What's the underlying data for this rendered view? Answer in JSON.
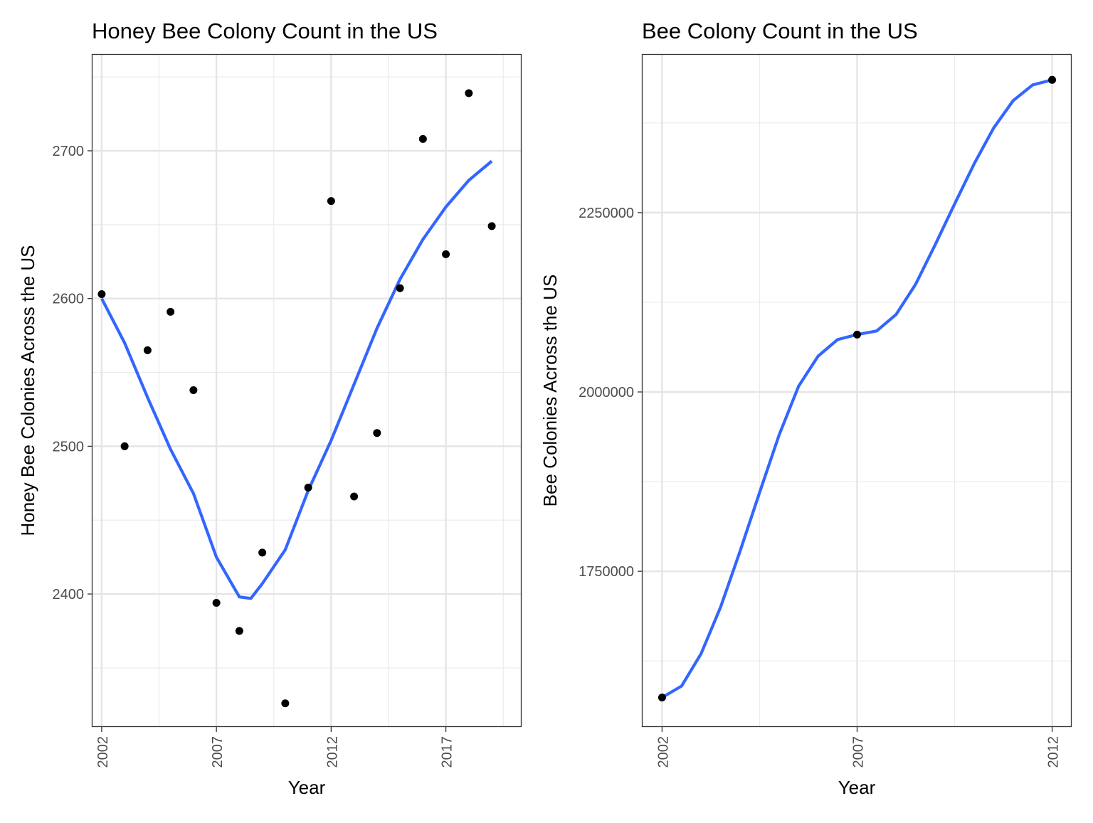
{
  "chart_data": [
    {
      "type": "scatter",
      "title": "Honey Bee Colony Count in the US",
      "xlabel": "Year",
      "ylabel": "Honey Bee Colonies Across the US",
      "x_ticks": [
        2002,
        2007,
        2012,
        2017
      ],
      "y_ticks": [
        2400,
        2500,
        2600,
        2700
      ],
      "xlim": [
        2001.6,
        2020.3
      ],
      "ylim": [
        2310,
        2765
      ],
      "grid": true,
      "points": [
        {
          "x": 2002,
          "y": 2603
        },
        {
          "x": 2003,
          "y": 2500
        },
        {
          "x": 2004,
          "y": 2565
        },
        {
          "x": 2005,
          "y": 2591
        },
        {
          "x": 2006,
          "y": 2538
        },
        {
          "x": 2007,
          "y": 2394
        },
        {
          "x": 2008,
          "y": 2375
        },
        {
          "x": 2009,
          "y": 2428
        },
        {
          "x": 2010,
          "y": 2326
        },
        {
          "x": 2011,
          "y": 2472
        },
        {
          "x": 2012,
          "y": 2666
        },
        {
          "x": 2013,
          "y": 2466
        },
        {
          "x": 2014,
          "y": 2509
        },
        {
          "x": 2015,
          "y": 2607
        },
        {
          "x": 2016,
          "y": 2708
        },
        {
          "x": 2017,
          "y": 2630
        },
        {
          "x": 2018,
          "y": 2739
        },
        {
          "x": 2019,
          "y": 2649
        }
      ],
      "smooth": {
        "color": "#3366FF",
        "x": [
          2002,
          2003,
          2004,
          2005,
          2006,
          2007,
          2008,
          2008.5,
          2009,
          2010,
          2011,
          2012,
          2013,
          2014,
          2015,
          2016,
          2017,
          2018,
          2019
        ],
        "y": [
          2600,
          2570,
          2533,
          2498,
          2468,
          2425,
          2398,
          2397,
          2407,
          2430,
          2470,
          2504,
          2542,
          2580,
          2613,
          2640,
          2662,
          2680,
          2693
        ]
      }
    },
    {
      "type": "line",
      "title": "Bee Colony Count in the US",
      "xlabel": "Year",
      "ylabel": "Bee Colonies Across the US",
      "x_ticks": [
        2002,
        2007,
        2012
      ],
      "y_ticks": [
        1750000,
        2000000,
        2250000
      ],
      "xlim": [
        2001.5,
        2012.5
      ],
      "ylim": [
        1533000,
        2470000
      ],
      "grid": true,
      "points": [
        {
          "x": 2002,
          "y": 1574000
        },
        {
          "x": 2007,
          "y": 2080000
        },
        {
          "x": 2012,
          "y": 2435000
        }
      ],
      "smooth": {
        "color": "#3366FF",
        "x": [
          2002,
          2002.5,
          2003,
          2003.5,
          2004,
          2004.5,
          2005,
          2005.5,
          2006,
          2006.5,
          2007,
          2007.5,
          2008,
          2008.5,
          2009,
          2009.5,
          2010,
          2010.5,
          2011,
          2011.5,
          2012
        ],
        "y": [
          1574000,
          1590000,
          1635000,
          1700000,
          1778000,
          1860000,
          1940000,
          2008000,
          2050000,
          2073000,
          2080000,
          2085000,
          2108000,
          2150000,
          2205000,
          2262000,
          2318000,
          2368000,
          2406000,
          2428000,
          2435000
        ]
      }
    }
  ]
}
